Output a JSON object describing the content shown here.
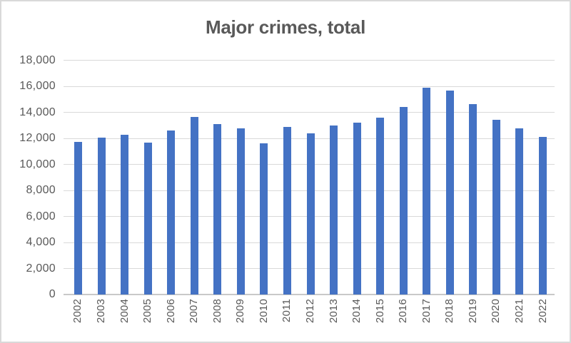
{
  "window": {
    "background": "#ffffff",
    "border_color": "#d9d9d9"
  },
  "chart_data": {
    "type": "bar",
    "title": "Major crimes, total",
    "categories": [
      "2002",
      "2003",
      "2004",
      "2005",
      "2006",
      "2007",
      "2008",
      "2009",
      "2010",
      "2011",
      "2012",
      "2013",
      "2014",
      "2015",
      "2016",
      "2017",
      "2018",
      "2019",
      "2020",
      "2021",
      "2022"
    ],
    "values": [
      11700,
      12050,
      12300,
      11650,
      12600,
      13650,
      13100,
      12750,
      11600,
      12850,
      12400,
      13000,
      13200,
      13600,
      14400,
      15900,
      15650,
      14650,
      13400,
      12750,
      12100
    ],
    "xlabel": "",
    "ylabel": "",
    "ylim": [
      0,
      18000
    ],
    "ytick_step": 2000,
    "ytick_labels": [
      "0",
      "2,000",
      "4,000",
      "6,000",
      "8,000",
      "10,000",
      "12,000",
      "14,000",
      "16,000",
      "18,000"
    ],
    "grid": "horizontal",
    "legend": "none",
    "x_labels_rotation_degrees": -90,
    "colors": {
      "bar": "#4472c4",
      "title": "#595959",
      "axis_labels": "#595959",
      "gridline": "#d9d9d9",
      "axis_line": "#c9c9c9"
    }
  }
}
